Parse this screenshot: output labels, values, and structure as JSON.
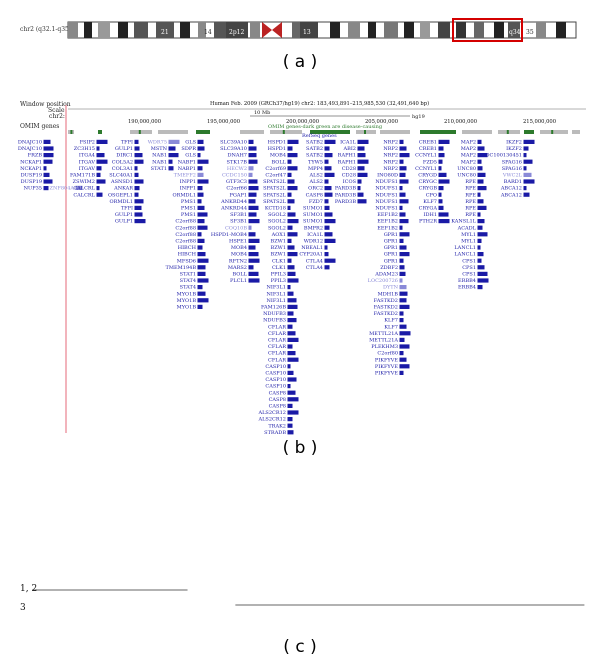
{
  "panels": {
    "a": "( a )",
    "b": "( b )",
    "c": "( c )"
  },
  "ideogram": {
    "label": "chr2 (q32.1-q35)",
    "bands": [
      "21",
      "14",
      "2p12",
      "13",
      "q34",
      "35"
    ]
  },
  "browser": {
    "header_labels": {
      "window_position": "Window position",
      "scale": "Scale",
      "chr": "chr2:",
      "omim": "OMIM genes"
    },
    "assembly_title": "Human Feb. 2009 (GRCh37/hg19)   chr2: 183,493,891–215,985,530 (32,491,640 bp)",
    "hg": "hg19",
    "scale_label": "10 Mb",
    "coordinates": [
      "190,000,000",
      "195,000,000",
      "200,000,000",
      "205,000,000",
      "210,000,000",
      "215,000,000"
    ],
    "omim_title": "OMIM genes-dark green are disease-causing",
    "refseq_title": "RefSeq genes",
    "accent_color": "#1a1aa6",
    "pale_color": "#8a8ad8",
    "omim_dark": "#2d7a2d",
    "omim_grey": "#bbbbbb",
    "gene_columns": [
      [
        "DNAJC10",
        "DNAJC10",
        "FRZB",
        "NCKAP1",
        "NCKAP1",
        "DUSP19",
        "DUSP19",
        "NUP35"
      ],
      [
        "ZNF804A"
      ],
      [
        "FSIP2",
        "ZC3H15",
        "ITGA4",
        "ITGAV",
        "ITGAV",
        "FAM171B",
        "ZSWIM2",
        "CALCRL",
        "CALCRL"
      ],
      [
        "TFPI",
        "GULP1",
        "DIRC1",
        "COL5A2",
        "COL3A1",
        "SLC40A1",
        "ASNSD1",
        "ANKAR",
        "OSGEPL1",
        "ORMDL1",
        "TFPI",
        "GULP1",
        "GULP1"
      ],
      [
        "WDR75",
        "MSTN",
        "NAB1",
        "NAB1",
        "STAT1"
      ],
      [
        "GLS",
        "SDPR",
        "GLS",
        "NABP1",
        "NABP1",
        "TMEFF2",
        "INPP1",
        "INPP1",
        "ORMDL1",
        "PMS1",
        "PMS1",
        "PMS1",
        "C2orf88",
        "C2orf88",
        "C2orf88",
        "C2orf88",
        "HIBCH",
        "HIBCH",
        "MFSD6",
        "TMEM194B",
        "STAT1",
        "STAT4",
        "STAT4",
        "MYO1B",
        "MYO1B",
        "MYO1B"
      ],
      [
        "SLC39A10",
        "SLC39A10",
        "DNAH7",
        "STK17B",
        "HECW2",
        "CCDC150",
        "GTF3C3",
        "C2orf66",
        "PGAP1",
        "ANKRD44",
        "ANKRD44",
        "SF3B1",
        "SF3B1",
        "COQ10B",
        "HSPD1-MOB4",
        "HSPE1",
        "MOB4",
        "MOB4",
        "RFTN2",
        "MARS2",
        "BOLL",
        "PLCL1"
      ],
      [
        "HSPD1",
        "HSPD1",
        "MOB4",
        "BOLL",
        "C2orf69",
        "C2orf47",
        "SPATS2L",
        "SPATS2L",
        "SPATS2L",
        "SPATS2L",
        "KCTD18",
        "SGOL2",
        "SGOL2",
        "SGOL2",
        "AOX1",
        "BZW1",
        "BZW1",
        "BZW1",
        "CLK1",
        "CLK1",
        "PPIL3",
        "PPIL3",
        "NIF3L1",
        "NIF3L1",
        "NIF3L1",
        "FAM126B",
        "NDUFB3",
        "NDUFB3",
        "CFLAR",
        "CFLAR",
        "CFLAR",
        "CFLAR",
        "CFLAR",
        "CFLAR",
        "CASP10",
        "CASP10",
        "CASP10",
        "CASP10",
        "CASP8",
        "CASP8",
        "CASP8",
        "ALS2CR12",
        "ALS2CR12",
        "TRAK2",
        "STRADB",
        "STRADB",
        "ALS2CR11",
        "ALS2CR11",
        "ALS2CR11",
        "TMEM237",
        "TMEM237",
        "CDK15",
        "CDK15",
        "CDK15",
        "LOC100652824",
        "FAM117B",
        "ALS2CR8"
      ],
      [
        "SATB2",
        "SATB2",
        "SATB2",
        "TYW5",
        "MPP4",
        "ALS2",
        "ALS2",
        "ORC2",
        "CASP8",
        "FZD7",
        "SUMO1",
        "SUMO1",
        "SUMO1",
        "BMPR2",
        "ICA1L",
        "WDR12",
        "NBEAL1",
        "CYP20A1",
        "CTLA4",
        "CTLA4"
      ],
      [
        "ICA1L",
        "ABI2",
        "RAPH1",
        "RAPH1",
        "CD28",
        "CD28",
        "ICOS",
        "PARD3B",
        "PARD3B",
        "PARD3B"
      ],
      [
        "NRP2",
        "NRP2",
        "NRP2",
        "NRP2",
        "NRP2",
        "INO80D",
        "NDUFS1",
        "NDUFS1",
        "NDUFS1",
        "NDUFS1",
        "NDUFS1",
        "EEF1B2",
        "EEF1B2",
        "EEF1B2",
        "GPR1",
        "GPR1",
        "GPR1",
        "GPR1",
        "GPR1",
        "ZDBF2",
        "ADAM23",
        "LOC200726",
        "DYTN",
        "MDH1B",
        "FASTKD2",
        "FASTKD2",
        "FASTKD2",
        "KLF7",
        "KLF7",
        "METTL21A",
        "METTL21A",
        "PLEKHM3",
        "C2orf80",
        "PIKFYVE",
        "PIKFYVE",
        "PIKFYVE"
      ],
      [
        "CREB1",
        "CREB1",
        "CCNYL1",
        "FZD5",
        "CCNYL1",
        "CRYGD",
        "CRYGC",
        "CRYGB",
        "CPO",
        "KLF7",
        "CRYGA",
        "IDH1",
        "PTH2R"
      ],
      [
        "MAP2",
        "MAP2",
        "MAP2",
        "MAP2",
        "UNC80",
        "UNC80",
        "RPE",
        "RPE",
        "RPE",
        "RPE",
        "RPE",
        "RPE",
        "KANSL1L",
        "ACADL",
        "MYL1",
        "MYL1",
        "LANCL1",
        "LANCL1",
        "CPS1",
        "CPS1",
        "CPS1",
        "ERBB4",
        "ERBB4"
      ],
      [
        "IKZF2",
        "IKZF2",
        "LOC100130451",
        "SPAG16",
        "SPAG16",
        "VWC2L",
        "BARD1",
        "ABCA12",
        "ABCA12"
      ]
    ]
  },
  "tracks_c": [
    {
      "label": "1, 2",
      "x_start_mb": 183.5,
      "x_end_mb": 191.0
    },
    {
      "label": "3",
      "x_start_mb": 194.0,
      "x_end_mb": 215.9
    }
  ]
}
